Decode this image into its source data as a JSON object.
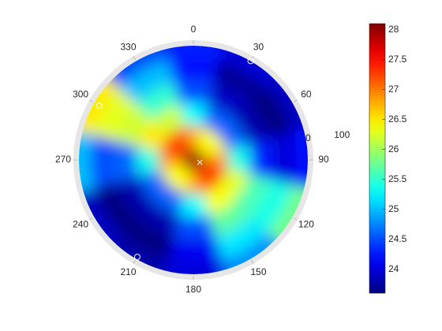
{
  "chart_data": {
    "type": "polar-heatmap",
    "colormap": "jet",
    "theta": [
      0,
      30,
      60,
      90,
      120,
      150,
      180,
      210,
      240,
      270,
      300,
      330
    ],
    "r": [
      0,
      20,
      40,
      60,
      80,
      100
    ],
    "z": [
      [
        28,
        26.8,
        25.3,
        24.5,
        24.2,
        24.3
      ],
      [
        28,
        26.4,
        24.6,
        23.9,
        23.7,
        24.0
      ],
      [
        28,
        26.4,
        24.6,
        23.8,
        23.6,
        23.9
      ],
      [
        28,
        26.9,
        25.4,
        24.3,
        24.0,
        24.2
      ],
      [
        28,
        27.3,
        26.3,
        25.6,
        25.4,
        25.8
      ],
      [
        28,
        27.3,
        26.4,
        25.7,
        25.2,
        24.8
      ],
      [
        28,
        26.8,
        25.3,
        24.5,
        24.1,
        24.0
      ],
      [
        28,
        26.4,
        24.6,
        23.8,
        23.6,
        23.8
      ],
      [
        28,
        26.4,
        24.6,
        23.8,
        23.6,
        23.9
      ],
      [
        28,
        26.9,
        25.4,
        24.6,
        24.5,
        25.0
      ],
      [
        28,
        27.3,
        26.5,
        26.2,
        26.3,
        26.5
      ],
      [
        28,
        27.2,
        26.2,
        25.5,
        25.0,
        24.5
      ]
    ],
    "thetaticks": [
      0,
      30,
      60,
      90,
      120,
      150,
      180,
      210,
      240,
      270,
      300,
      330
    ],
    "rlim": [
      0,
      100
    ],
    "rticks": [
      0,
      100
    ],
    "points": [
      {
        "theta": 30,
        "r": 100,
        "marker": "o"
      },
      {
        "theta": 300,
        "r": 95,
        "marker": "o"
      },
      {
        "theta": 210,
        "r": 98,
        "marker": "o"
      },
      {
        "theta": 110,
        "r": 6,
        "marker": "x"
      }
    ],
    "clim": [
      23.6,
      28.1
    ],
    "colorbar_ticks": [
      24,
      24.5,
      25,
      25.5,
      26,
      26.5,
      27,
      27.5,
      28
    ]
  }
}
